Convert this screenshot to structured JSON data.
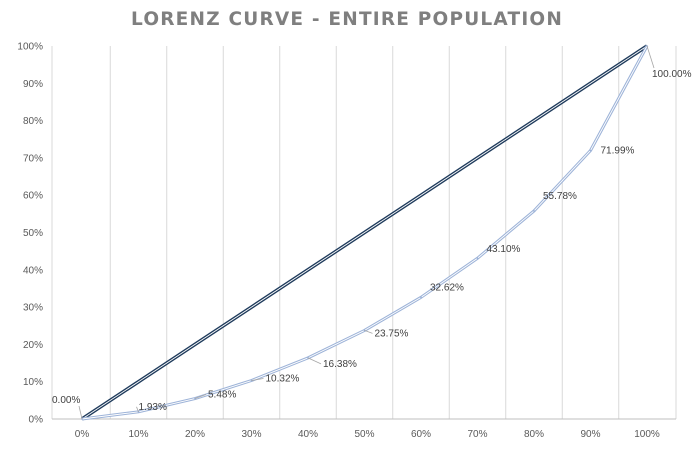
{
  "chart_data": {
    "type": "line",
    "title": "LORENZ CURVE - ENTIRE POPULATION",
    "xlabel": "",
    "ylabel": "",
    "x": [
      0,
      10,
      20,
      30,
      40,
      50,
      60,
      70,
      80,
      90,
      100
    ],
    "x_tick_labels": [
      "0%",
      "10%",
      "20%",
      "30%",
      "40%",
      "50%",
      "60%",
      "70%",
      "80%",
      "90%",
      "100%"
    ],
    "y_tick_labels": [
      "0%",
      "10%",
      "20%",
      "30%",
      "40%",
      "50%",
      "60%",
      "70%",
      "80%",
      "90%",
      "100%"
    ],
    "xlim": [
      0,
      100
    ],
    "ylim": [
      0,
      100
    ],
    "grid": "vertical",
    "legend": "none",
    "series": [
      {
        "role": "equality-line",
        "values": [
          0,
          10,
          20,
          30,
          40,
          50,
          60,
          70,
          80,
          90,
          100
        ],
        "color": "#1f3b5c"
      },
      {
        "role": "lorenz-curve",
        "values": [
          0,
          1.93,
          5.48,
          10.32,
          16.38,
          23.75,
          32.62,
          43.1,
          55.78,
          71.99,
          100
        ],
        "data_labels": [
          "0.00%",
          "1.93%",
          "5.48%",
          "10.32%",
          "16.38%",
          "23.75%",
          "32.62%",
          "43.10%",
          "55.78%",
          "71.99%",
          "100.00%"
        ],
        "color": "#9db3d8"
      }
    ]
  }
}
